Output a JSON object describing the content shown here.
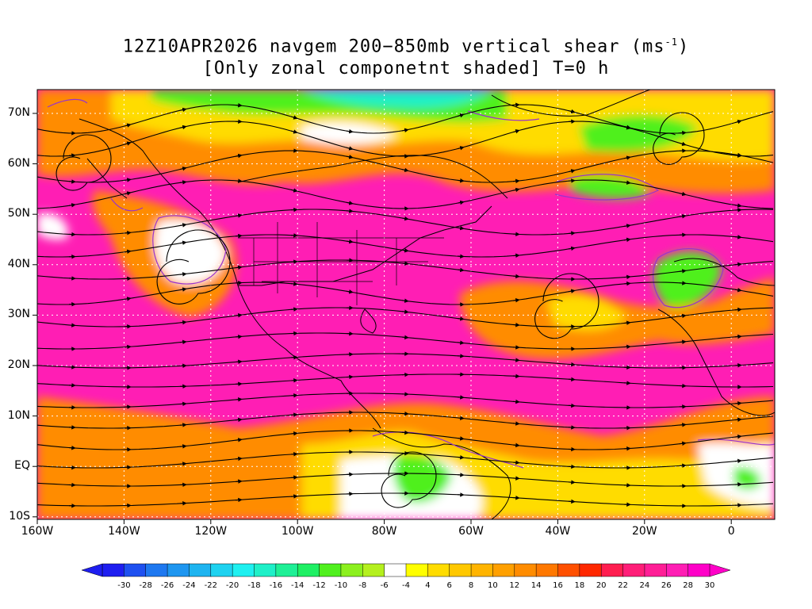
{
  "title": {
    "line1": "12Z10APR2026 navgem 200−850mb vertical shear (ms",
    "line1_sup": "-1",
    "line1_end": ")",
    "line2": "[Only zonal componetnt shaded] T=0 h"
  },
  "axes": {
    "lat_labels": [
      "70N",
      "60N",
      "50N",
      "40N",
      "30N",
      "20N",
      "10N",
      "EQ",
      "10S"
    ],
    "lon_labels": [
      "160W",
      "140W",
      "120W",
      "100W",
      "80W",
      "60W",
      "40W",
      "20W",
      "0"
    ]
  },
  "colorbar": {
    "labels": [
      "-30",
      "-28",
      "-26",
      "-24",
      "-22",
      "-20",
      "-18",
      "-16",
      "-14",
      "-12",
      "-10",
      "-8",
      "-6",
      "-4",
      "4",
      "6",
      "8",
      "10",
      "12",
      "14",
      "16",
      "18",
      "20",
      "22",
      "24",
      "26",
      "28",
      "30"
    ],
    "colors": [
      "#1e1ef0",
      "#1e50f0",
      "#1e78f0",
      "#1e96f0",
      "#1eb4f0",
      "#1ed2f0",
      "#1ef0f0",
      "#1ef0c8",
      "#1ef096",
      "#1ef064",
      "#50f01e",
      "#8cf01e",
      "#b4f01e",
      "#ffffff",
      "#ffff00",
      "#ffdc00",
      "#ffc800",
      "#ffb400",
      "#ffa000",
      "#ff8c00",
      "#ff7800",
      "#ff5000",
      "#ff2800",
      "#ff1e50",
      "#ff1e78",
      "#ff1e96",
      "#ff1eb4",
      "#ff00c8"
    ]
  },
  "map_colors": {
    "ocean_jet": "#ff1eb4",
    "strong": "#ff1e78",
    "orange": "#ff8c00",
    "yellow": "#ffdc00",
    "green": "#50f01e",
    "cyan": "#1ef0c8",
    "white": "#ffffff",
    "coast": "#000000",
    "contour": "#9933cc",
    "grid": "#ffffff"
  }
}
